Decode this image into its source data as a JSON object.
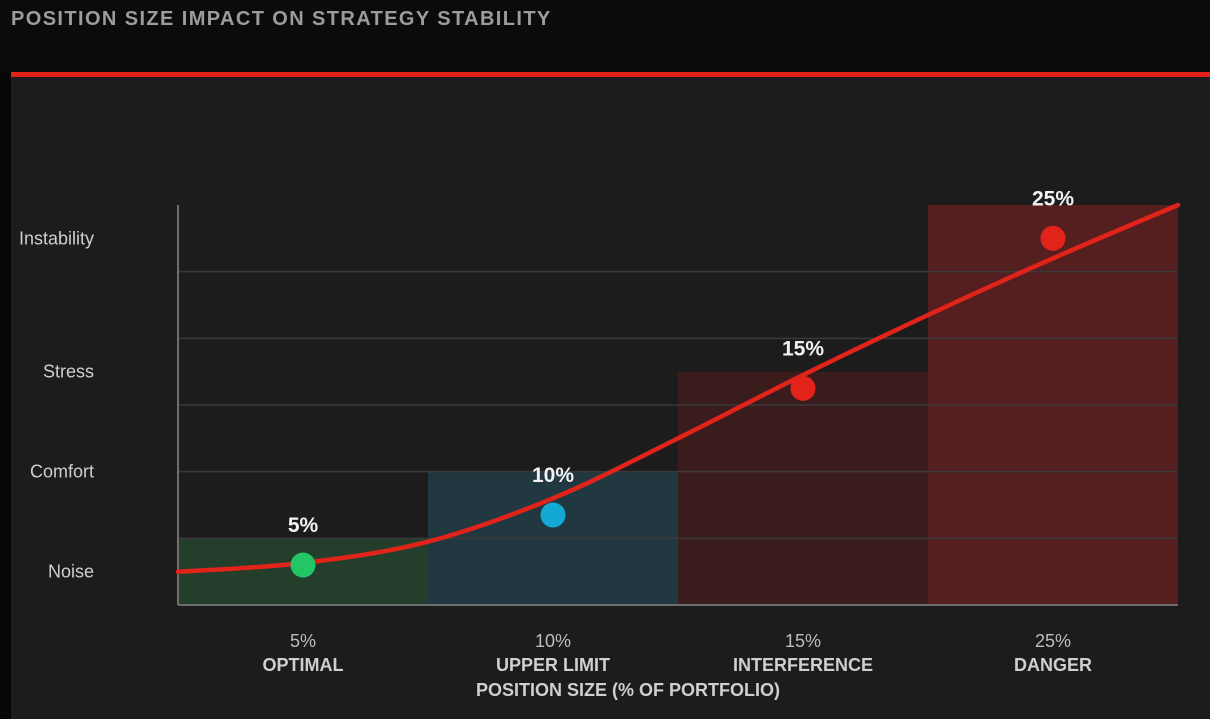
{
  "title": "POSITION SIZE IMPACT ON STRATEGY STABILITY",
  "colors": {
    "background": "#1c1c1c",
    "accent": "#e2231a",
    "curve": "#e2231a",
    "grid": "#3a3a3a",
    "axis": "#6e6e6e"
  },
  "chart_data": {
    "type": "bar",
    "title": "POSITION SIZE IMPACT ON STRATEGY STABILITY",
    "xlabel": "POSITION SIZE (% OF PORTFOLIO)",
    "ylabel": "",
    "ylim": [
      0,
      6
    ],
    "y_levels": [
      {
        "label": "Noise",
        "value": 0.5
      },
      {
        "label": "Comfort",
        "value": 2
      },
      {
        "label": "Stress",
        "value": 3.5
      },
      {
        "label": "Instability",
        "value": 5.5
      }
    ],
    "categories": [
      {
        "tick": "5%",
        "name": "OPTIMAL",
        "band_value": 1,
        "point_value": 0.6,
        "label": "5%",
        "band_color": "#233f2c",
        "point_color": "#22c665"
      },
      {
        "tick": "10%",
        "name": "UPPER LIMIT",
        "band_value": 2,
        "point_value": 1.35,
        "label": "10%",
        "band_color": "#213841",
        "point_color": "#14a9d4"
      },
      {
        "tick": "15%",
        "name": "INTERFERENCE",
        "band_value": 3.5,
        "point_value": 3.25,
        "label": "15%",
        "band_color": "#3b1c1c",
        "point_color": "#e2231a"
      },
      {
        "tick": "25%",
        "name": "DANGER",
        "band_value": 6,
        "point_value": 5.5,
        "label": "25%",
        "band_color": "#561f1f",
        "point_color": "#e2231a"
      }
    ],
    "curve": {
      "name": "",
      "x": [
        0,
        0.5,
        1,
        1.5,
        2,
        2.5,
        3,
        3.5,
        4
      ],
      "y": [
        0.5,
        0.63,
        0.95,
        1.6,
        2.5,
        3.45,
        4.35,
        5.2,
        6.0
      ]
    },
    "grid": true,
    "legend": "none"
  }
}
